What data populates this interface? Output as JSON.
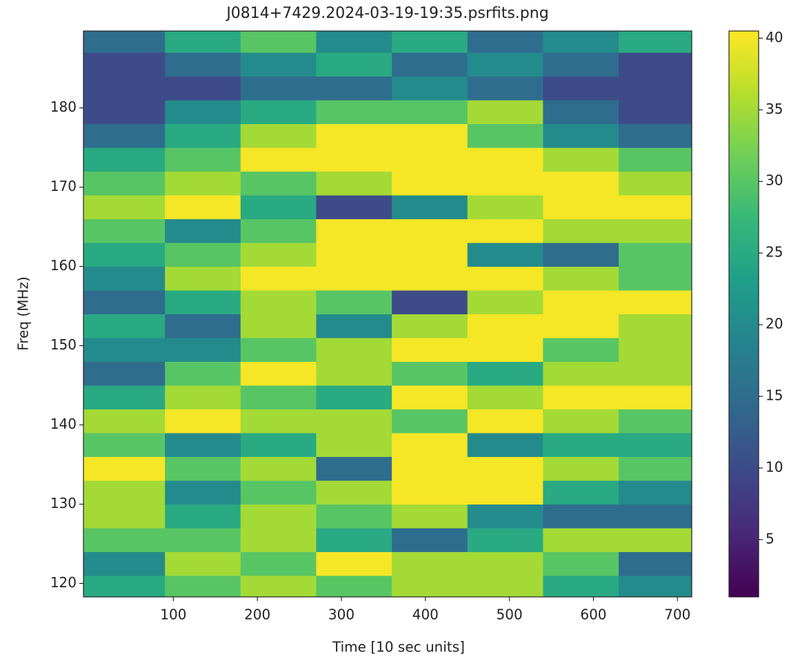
{
  "chart_data": {
    "type": "heatmap",
    "title": "J0814+7429.2024-03-19-19:35.psrfits.png",
    "xlabel": "Time [10 sec units]",
    "ylabel": "Freq (MHz)",
    "xlim": [
      -7,
      717
    ],
    "ylim": [
      118.3,
      189.7
    ],
    "xticks": [
      100,
      200,
      300,
      400,
      500,
      600,
      700
    ],
    "yticks": [
      120,
      130,
      140,
      150,
      160,
      170,
      180
    ],
    "colormap": "viridis",
    "clim": [
      1,
      40.5
    ],
    "cticks": [
      5,
      10,
      15,
      20,
      25,
      30,
      35,
      40
    ],
    "xbins": [
      -7,
      90,
      180,
      270,
      360,
      450,
      540,
      630,
      717
    ],
    "ybins": [
      118,
      121,
      124,
      127,
      130,
      133,
      136,
      139,
      142,
      145,
      148,
      151,
      154,
      157,
      160,
      163,
      166,
      169,
      172,
      175,
      178,
      181,
      184,
      187,
      190
    ],
    "z": [
      [
        25,
        30,
        35,
        30,
        35,
        35,
        25,
        20
      ],
      [
        20,
        35,
        30,
        40,
        35,
        35,
        30,
        15
      ],
      [
        30,
        30,
        35,
        25,
        15,
        25,
        35,
        35
      ],
      [
        35,
        25,
        35,
        30,
        35,
        20,
        15,
        15
      ],
      [
        35,
        20,
        30,
        35,
        40,
        40,
        25,
        20
      ],
      [
        40,
        30,
        35,
        15,
        40,
        40,
        35,
        30
      ],
      [
        30,
        20,
        25,
        35,
        40,
        20,
        25,
        25
      ],
      [
        35,
        40,
        35,
        35,
        30,
        40,
        35,
        30
      ],
      [
        25,
        35,
        30,
        25,
        40,
        35,
        40,
        40
      ],
      [
        15,
        30,
        40,
        35,
        30,
        25,
        35,
        35
      ],
      [
        20,
        20,
        30,
        35,
        40,
        40,
        30,
        35
      ],
      [
        25,
        15,
        35,
        20,
        35,
        40,
        40,
        35
      ],
      [
        15,
        25,
        35,
        30,
        10,
        35,
        40,
        40
      ],
      [
        20,
        35,
        40,
        40,
        40,
        40,
        35,
        30
      ],
      [
        25,
        30,
        35,
        40,
        40,
        20,
        15,
        30
      ],
      [
        30,
        20,
        30,
        40,
        40,
        40,
        35,
        35
      ],
      [
        35,
        40,
        25,
        10,
        20,
        35,
        40,
        40
      ],
      [
        30,
        35,
        30,
        35,
        40,
        40,
        40,
        35
      ],
      [
        25,
        30,
        40,
        40,
        40,
        40,
        35,
        30
      ],
      [
        15,
        25,
        35,
        40,
        40,
        30,
        20,
        15
      ],
      [
        10,
        20,
        25,
        30,
        30,
        35,
        15,
        10
      ],
      [
        10,
        10,
        15,
        15,
        20,
        15,
        10,
        10
      ],
      [
        10,
        15,
        20,
        25,
        15,
        20,
        15,
        10
      ],
      [
        15,
        25,
        30,
        20,
        25,
        15,
        20,
        25
      ]
    ]
  }
}
